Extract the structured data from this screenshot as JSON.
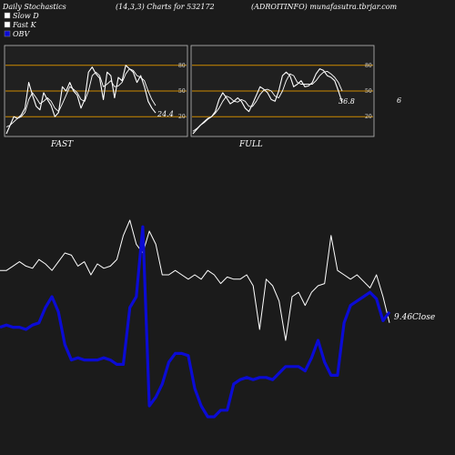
{
  "header": {
    "title_left": "Daily Stochastics",
    "title_mid": "(14,3,3) Charts for 532172",
    "title_right": "(ADROITINFO) munafasutra.tbrjar.com"
  },
  "legend": [
    {
      "label": "Slow  D",
      "color": "#ffffff"
    },
    {
      "label": "Fast K",
      "color": "#ffffff"
    },
    {
      "label": "OBV",
      "color": "#0b0bd4"
    }
  ],
  "colors": {
    "background": "#1b1b1b",
    "panel_bg": "#202020",
    "level_line": "#cc8a00",
    "obv": "#0b0bd4",
    "price": "#ffffff"
  },
  "chart_data": [
    {
      "type": "line",
      "title": "FAST",
      "ylim": [
        0,
        100
      ],
      "yticks": [
        "80",
        "50",
        "20"
      ],
      "ytick_values": [
        80,
        50,
        20
      ],
      "levels": [
        80,
        50,
        20
      ],
      "last_value_label": "24.4",
      "series": [
        {
          "name": "Fast K",
          "values": [
            0,
            10,
            20,
            18,
            22,
            30,
            60,
            45,
            32,
            28,
            48,
            40,
            33,
            20,
            25,
            55,
            50,
            60,
            50,
            45,
            30,
            40,
            72,
            78,
            70,
            65,
            40,
            72,
            68,
            42,
            66,
            62,
            80,
            76,
            72,
            60,
            68,
            55,
            38,
            30,
            24.4
          ]
        },
        {
          "name": "Slow D",
          "values": [
            8,
            10,
            14,
            18,
            20,
            25,
            40,
            48,
            42,
            35,
            38,
            42,
            38,
            30,
            26,
            35,
            45,
            55,
            52,
            48,
            40,
            38,
            50,
            68,
            72,
            68,
            55,
            58,
            62,
            55,
            56,
            60,
            70,
            76,
            74,
            68,
            66,
            62,
            50,
            40,
            33
          ]
        }
      ]
    },
    {
      "type": "line",
      "title": "FULL",
      "ylim": [
        0,
        100
      ],
      "yticks": [
        "80",
        "50",
        "20"
      ],
      "ytick_values": [
        80,
        50,
        20
      ],
      "levels": [
        80,
        50,
        20
      ],
      "last_value_label": "36.8",
      "series": [
        {
          "name": "Fast K",
          "values": [
            0,
            5,
            10,
            14,
            18,
            20,
            26,
            40,
            48,
            42,
            35,
            38,
            42,
            38,
            30,
            26,
            35,
            45,
            55,
            52,
            48,
            40,
            38,
            50,
            68,
            72,
            68,
            55,
            58,
            62,
            55,
            56,
            60,
            70,
            76,
            74,
            68,
            66,
            62,
            50,
            36.8
          ]
        },
        {
          "name": "Slow D",
          "values": [
            3,
            6,
            10,
            13,
            17,
            20,
            24,
            30,
            38,
            44,
            42,
            38,
            37,
            40,
            38,
            32,
            32,
            38,
            46,
            51,
            52,
            50,
            44,
            42,
            50,
            62,
            70,
            68,
            60,
            58,
            58,
            58,
            58,
            62,
            68,
            72,
            73,
            70,
            66,
            60,
            50
          ]
        }
      ]
    },
    {
      "type": "line",
      "title": "",
      "close_label": "9.46Close",
      "ylim": [
        0,
        100
      ],
      "series": [
        {
          "name": "Close",
          "values": [
            72,
            72,
            74,
            76,
            74,
            73,
            77,
            75,
            72,
            76,
            80,
            79,
            74,
            76,
            70,
            75,
            73,
            74,
            77,
            88,
            95,
            84,
            80,
            90,
            84,
            70,
            70,
            72,
            70,
            68,
            70,
            68,
            72,
            70,
            66,
            69,
            68,
            68,
            70,
            65,
            45,
            68,
            65,
            58,
            40,
            60,
            62,
            56,
            62,
            65,
            66,
            88,
            72,
            70,
            68,
            70,
            67,
            64,
            70,
            60,
            48
          ]
        },
        {
          "name": "OBV",
          "values": [
            46,
            47,
            46,
            46,
            45,
            47,
            48,
            55,
            60,
            53,
            38,
            31,
            32,
            31,
            31,
            31,
            32,
            31,
            29,
            29,
            55,
            60,
            92,
            10,
            14,
            20,
            30,
            34,
            34,
            33,
            18,
            10,
            5,
            5,
            8,
            8,
            20,
            22,
            23,
            22,
            23,
            23,
            22,
            25,
            28,
            28,
            28,
            26,
            32,
            40,
            30,
            24,
            24,
            48,
            56,
            58,
            60,
            62,
            59,
            49,
            53
          ]
        }
      ]
    }
  ]
}
